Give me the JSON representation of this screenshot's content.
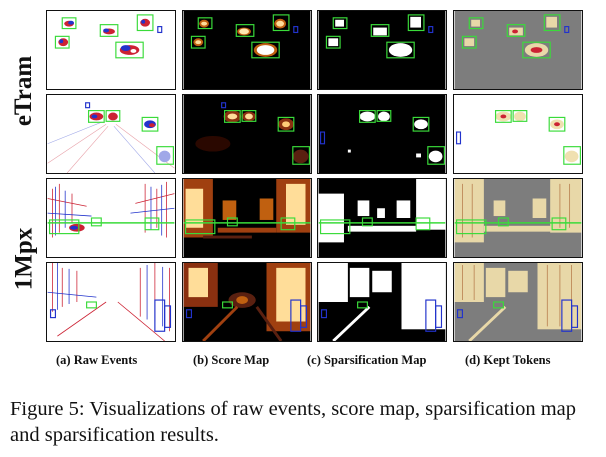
{
  "figure": {
    "row_groups": [
      "eTram",
      "1Mpx"
    ],
    "column_labels": [
      "(a) Raw Events",
      "(b) Score Map",
      "(c) Sparsification Map",
      "(d) Kept Tokens"
    ],
    "caption": "Figure 5: Visualizations of raw events, score map, sparsification map and sparsification results."
  },
  "colors": {
    "box_green": "#3adb3a",
    "box_blue": "#2233cc",
    "score_bg": "#000000",
    "score_hot": "#ffdd99",
    "kept_bg": "#7d7d7d"
  }
}
